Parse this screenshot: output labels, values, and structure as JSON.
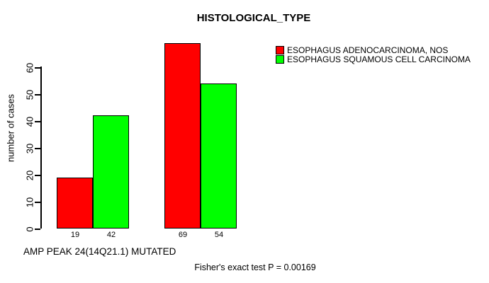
{
  "chart_data": {
    "type": "bar",
    "title": "HISTOLOGICAL_TYPE",
    "ylabel": "number of cases",
    "xlabel": "AMP PEAK 24(14Q21.1) MUTATED",
    "annotation": "Fisher's exact test P = 0.00169",
    "series": [
      {
        "name": "ESOPHAGUS ADENOCARCINOMA, NOS",
        "color": "#ff0000",
        "values": [
          19,
          69
        ]
      },
      {
        "name": "ESOPHAGUS SQUAMOUS CELL CARCINOMA",
        "color": "#00ff00",
        "values": [
          42,
          54
        ]
      }
    ],
    "yticks": [
      0,
      10,
      20,
      30,
      40,
      50,
      60
    ],
    "ylim": [
      0,
      74
    ],
    "grid": false,
    "legend_position": "top-right",
    "bar_value_labels": true,
    "bar_border_color": "#000000",
    "background_color": "#ffffff",
    "text_color": "#000000"
  }
}
